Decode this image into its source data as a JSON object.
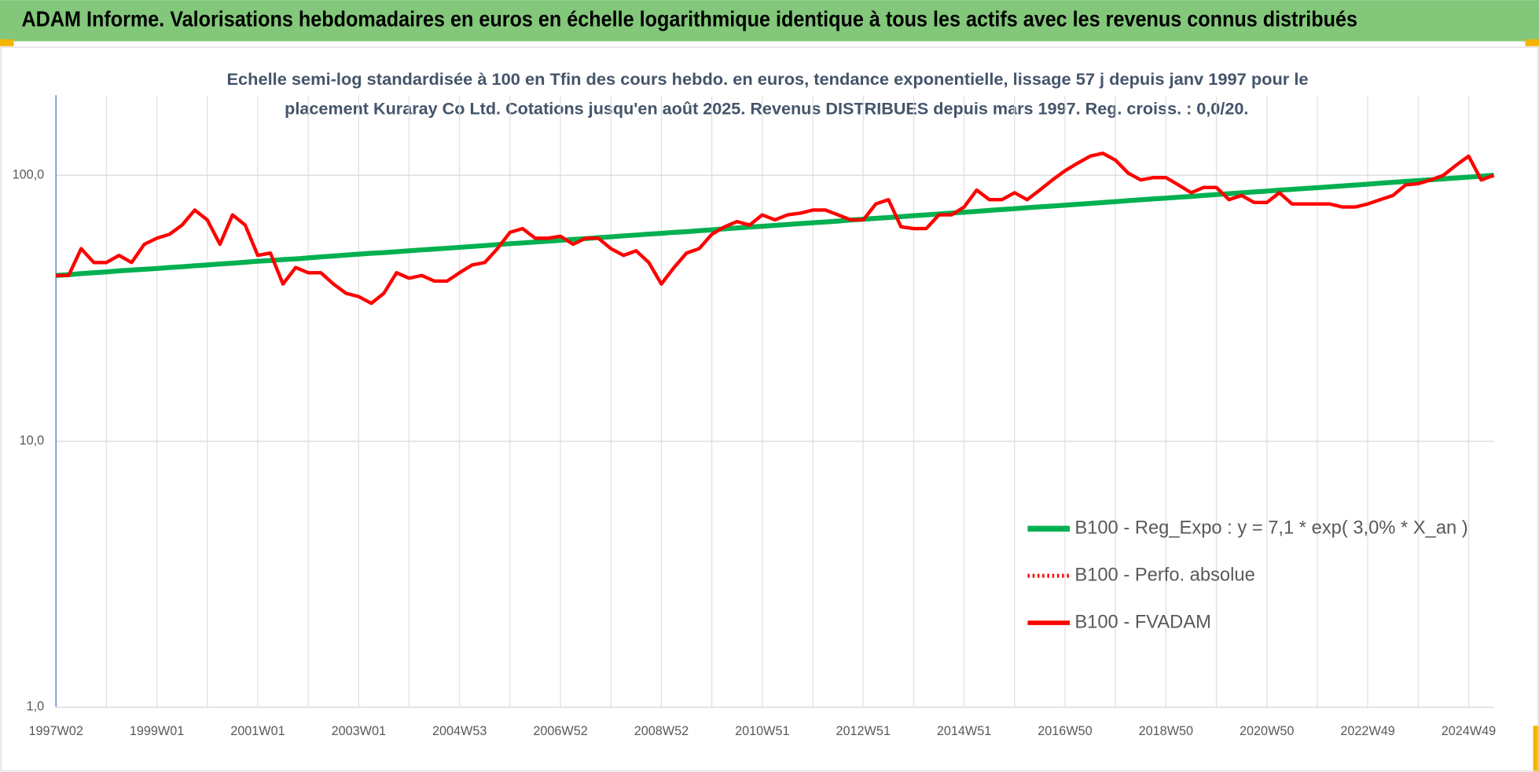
{
  "chart_data": {
    "type": "line",
    "header": "ADAM Informe. Valorisations hebdomadaires en euros en échelle logarithmique identique à tous les actifs avec les revenus connus distribués",
    "title": [
      "Echelle semi-log standardisée à 100 en Tfin des cours hebdo. en euros, tendance exponentielle, lissage 57 j depuis janv 1997 pour le",
      "placement Kuraray Co Ltd. Cotations jusqu'en août 2025.  Revenus DISTRIBUES depuis mars 1997. Reg. croiss. : 0,0/20."
    ],
    "categories": [
      "1997W02",
      null,
      null,
      null,
      null,
      null,
      null,
      null,
      "1999W01",
      null,
      null,
      null,
      null,
      null,
      null,
      null,
      "2001W01",
      null,
      null,
      null,
      null,
      null,
      null,
      null,
      "2003W01",
      null,
      null,
      null,
      null,
      null,
      null,
      null,
      "2004W53",
      null,
      null,
      null,
      null,
      null,
      null,
      null,
      "2006W52",
      null,
      null,
      null,
      null,
      null,
      null,
      null,
      "2008W52",
      null,
      null,
      null,
      null,
      null,
      null,
      null,
      "2010W51",
      null,
      null,
      null,
      null,
      null,
      null,
      null,
      "2012W51",
      null,
      null,
      null,
      null,
      null,
      null,
      null,
      "2014W51",
      null,
      null,
      null,
      null,
      null,
      null,
      null,
      "2016W50",
      null,
      null,
      null,
      null,
      null,
      null,
      null,
      "2018W50",
      null,
      null,
      null,
      null,
      null,
      null,
      null,
      "2020W50",
      null,
      null,
      null,
      null,
      null,
      null,
      null,
      "2022W49",
      null,
      null,
      null,
      null,
      null,
      null,
      null,
      "2024W49",
      null,
      null
    ],
    "series": [
      {
        "name": "B100 - Reg_Expo : y = 7,1 * exp( 3,0% *  X_an )",
        "color": "#00b050",
        "dash": "solid",
        "values": [
          42.0,
          42.3,
          42.7,
          43.0,
          43.3,
          43.7,
          44.0,
          44.3,
          44.6,
          45.0,
          45.3,
          45.7,
          46.0,
          46.4,
          46.7,
          47.1,
          47.5,
          47.8,
          48.2,
          48.5,
          48.9,
          49.3,
          49.7,
          50.1,
          50.5,
          50.9,
          51.2,
          51.6,
          52.0,
          52.4,
          52.8,
          53.2,
          53.6,
          54.0,
          54.4,
          54.9,
          55.3,
          55.7,
          56.1,
          56.5,
          56.9,
          57.4,
          57.8,
          58.3,
          58.7,
          59.2,
          59.6,
          60.1,
          60.5,
          61.0,
          61.4,
          61.9,
          62.4,
          62.9,
          63.4,
          63.9,
          64.3,
          64.8,
          65.3,
          65.8,
          66.3,
          66.8,
          67.3,
          67.9,
          68.4,
          68.9,
          69.4,
          69.9,
          70.5,
          71.0,
          71.5,
          72.1,
          72.6,
          73.2,
          73.8,
          74.4,
          74.9,
          75.5,
          76.1,
          76.6,
          77.2,
          77.8,
          78.4,
          79.0,
          79.6,
          80.3,
          80.9,
          81.5,
          82.1,
          82.7,
          83.3,
          84.0,
          84.6,
          85.3,
          85.9,
          86.6,
          87.2,
          87.9,
          88.5,
          89.2,
          89.8,
          90.5,
          91.2,
          91.9,
          92.6,
          93.4,
          94.1,
          94.8,
          95.5,
          96.2,
          96.9,
          97.7,
          98.4,
          99.2,
          100.0
        ]
      },
      {
        "name": "B100 - Perfo. absolue",
        "color": "#ff0000",
        "dash": "dotted",
        "values": [
          42,
          42,
          53,
          47,
          47,
          50,
          47,
          55,
          58,
          60,
          65,
          74,
          68,
          55,
          71,
          65,
          50,
          51,
          39,
          45,
          43,
          43,
          39,
          36,
          35,
          33,
          36,
          43,
          41,
          42,
          40,
          40,
          43,
          46,
          47,
          53,
          61,
          63,
          58,
          58,
          59,
          55,
          58,
          58,
          53,
          50,
          52,
          47,
          39,
          45,
          51,
          53,
          60,
          64,
          67,
          65,
          71,
          68,
          71,
          72,
          74,
          74,
          71,
          68,
          68,
          78,
          81,
          64,
          63,
          63,
          71,
          71,
          76,
          88,
          81,
          81,
          86,
          81,
          88,
          96,
          104,
          111,
          118,
          121,
          114,
          102,
          96,
          98,
          98,
          92,
          86,
          90,
          90,
          81,
          84,
          79,
          79,
          86,
          78,
          78,
          78,
          78,
          76,
          76,
          78,
          81,
          84,
          92,
          93,
          96,
          100,
          109,
          118,
          96,
          100
        ]
      },
      {
        "name": "B100 - FVADAM",
        "color": "#ff0000",
        "dash": "solid",
        "values": [
          42,
          42,
          53,
          47,
          47,
          50,
          47,
          55,
          58,
          60,
          65,
          74,
          68,
          55,
          71,
          65,
          50,
          51,
          39,
          45,
          43,
          43,
          39,
          36,
          35,
          33,
          36,
          43,
          41,
          42,
          40,
          40,
          43,
          46,
          47,
          53,
          61,
          63,
          58,
          58,
          59,
          55,
          58,
          58,
          53,
          50,
          52,
          47,
          39,
          45,
          51,
          53,
          60,
          64,
          67,
          65,
          71,
          68,
          71,
          72,
          74,
          74,
          71,
          68,
          68,
          78,
          81,
          64,
          63,
          63,
          71,
          71,
          76,
          88,
          81,
          81,
          86,
          81,
          88,
          96,
          104,
          111,
          118,
          121,
          114,
          102,
          96,
          98,
          98,
          92,
          86,
          90,
          90,
          81,
          84,
          79,
          79,
          86,
          78,
          78,
          78,
          78,
          76,
          76,
          78,
          81,
          84,
          92,
          93,
          96,
          100,
          109,
          118,
          96,
          100
        ]
      }
    ],
    "ylim": [
      1,
      200
    ],
    "log_scale": true,
    "grid": true,
    "yticks": [
      {
        "value": 1,
        "label": "1,0"
      },
      {
        "value": 10,
        "label": "10,0"
      },
      {
        "value": 100,
        "label": "100,0"
      }
    ]
  }
}
